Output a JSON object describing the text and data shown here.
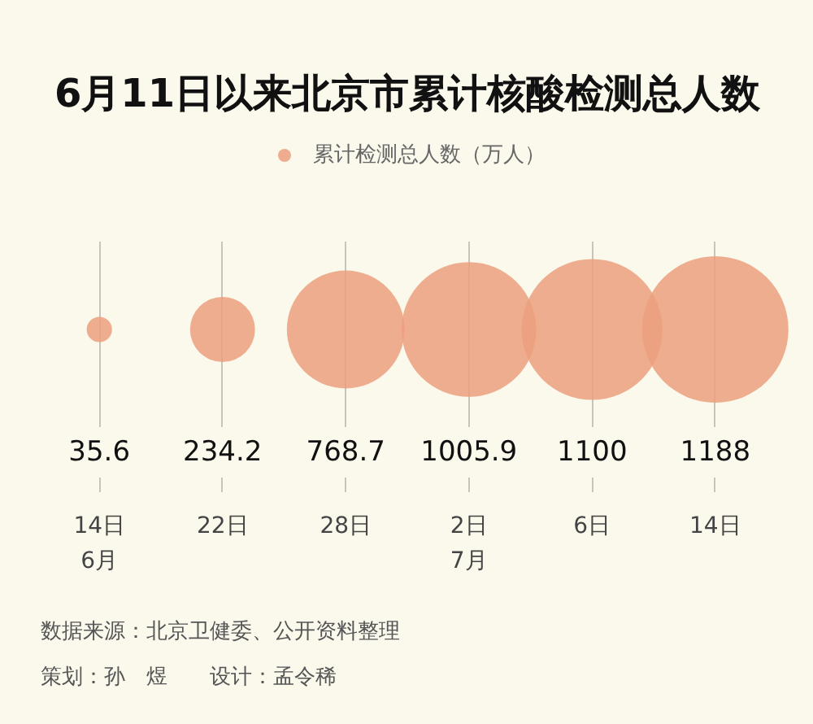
{
  "chart_data": {
    "type": "other",
    "title": "6月11日以来北京市累计核酸检测总人数",
    "categories": [
      "14日\n6月",
      "22日",
      "28日",
      "2日\n7月",
      "6日",
      "14日"
    ],
    "series": [
      {
        "name": "累计检测总人数（万人）",
        "color": "#eba07e",
        "values": [
          35.6,
          234.2,
          768.7,
          1005.9,
          1100,
          1188
        ]
      }
    ],
    "data_labels": true,
    "legend": "top",
    "annotations": [
      "数据来源：北京卫健委、公开资料整理",
      "策划：孙　煜　　设计：孟令稀"
    ]
  }
}
